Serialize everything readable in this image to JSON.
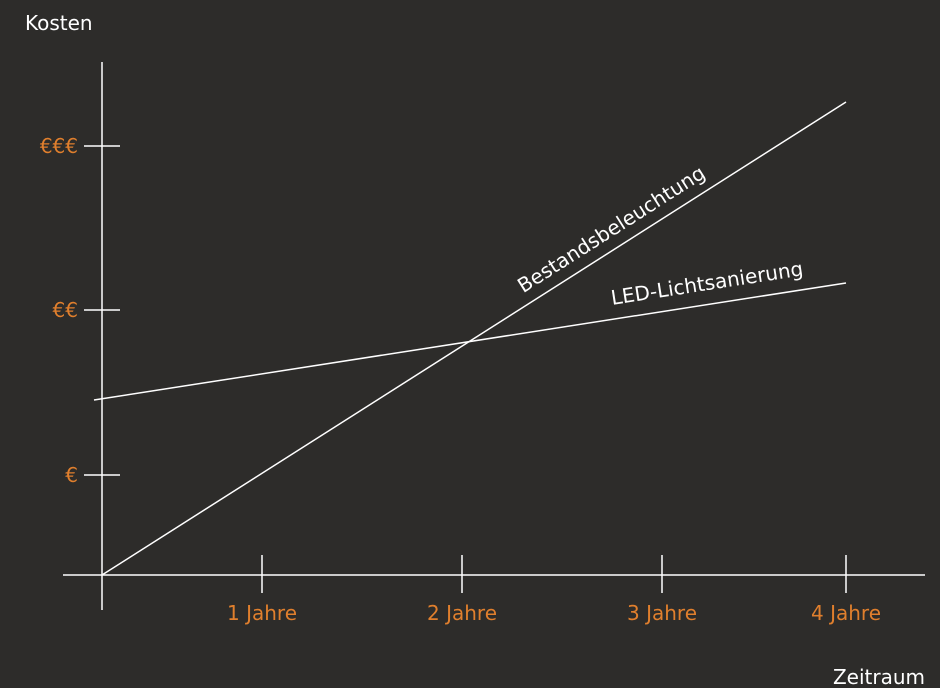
{
  "chart_data": {
    "type": "line",
    "xlabel": "Zeitraum",
    "ylabel": "Kosten",
    "x_ticks": [
      {
        "value": 1,
        "label": "1 Jahre"
      },
      {
        "value": 2,
        "label": "2 Jahre"
      },
      {
        "value": 3,
        "label": "3 Jahre"
      },
      {
        "value": 4,
        "label": "4 Jahre"
      }
    ],
    "y_ticks": [
      {
        "value": 1,
        "label": "€"
      },
      {
        "value": 2,
        "label": "€€"
      },
      {
        "value": 3,
        "label": "€€€"
      }
    ],
    "xlim": [
      0,
      4
    ],
    "ylim": [
      0,
      3
    ],
    "series": [
      {
        "name": "Bestandsbeleuchtung",
        "x": [
          0,
          4
        ],
        "y": [
          0,
          2.85
        ]
      },
      {
        "name": "LED-Lichtsanierung",
        "x": [
          0,
          4
        ],
        "y": [
          1.05,
          1.76
        ]
      }
    ],
    "colors": {
      "background": "#2d2c2a",
      "lines": "#ffffff",
      "tick_labels": "#e07f2d",
      "titles": "#ffffff"
    }
  }
}
